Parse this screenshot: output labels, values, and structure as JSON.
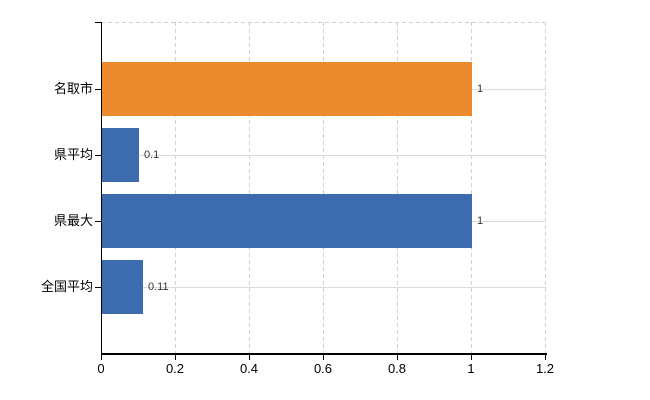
{
  "chart_data": {
    "type": "bar",
    "orientation": "horizontal",
    "title": "",
    "xlabel": "",
    "ylabel": "",
    "categories": [
      "名取市",
      "県平均",
      "県最大",
      "全国平均"
    ],
    "values": [
      1,
      0.1,
      1,
      0.11
    ],
    "data_labels": [
      "1",
      "0.1",
      "1",
      "0.11"
    ],
    "bar_colors": [
      "#eb8b2d",
      "#3d6bb0",
      "#3d6bb0",
      "#3d6bb0"
    ],
    "xlim": [
      0,
      1.2
    ],
    "x_ticks": [
      0,
      0.2,
      0.4,
      0.6,
      0.8,
      1,
      1.2
    ],
    "x_tick_labels": [
      "0",
      "0.2",
      "0.4",
      "0.6",
      "0.8",
      "1",
      "1.2"
    ],
    "grid": "vertical dashed + horizontal category lines",
    "legend_position": "none"
  },
  "colors": {
    "highlight_bar": "#eb8b2d",
    "default_bar": "#3d6bb0",
    "axis": "#000000",
    "gridline_dashed": "#cfcfd6",
    "gridline_solid": "#d8dcd8",
    "value_label_text": "#333333",
    "tick_label_text": "#000000",
    "background": "#ffffff"
  }
}
